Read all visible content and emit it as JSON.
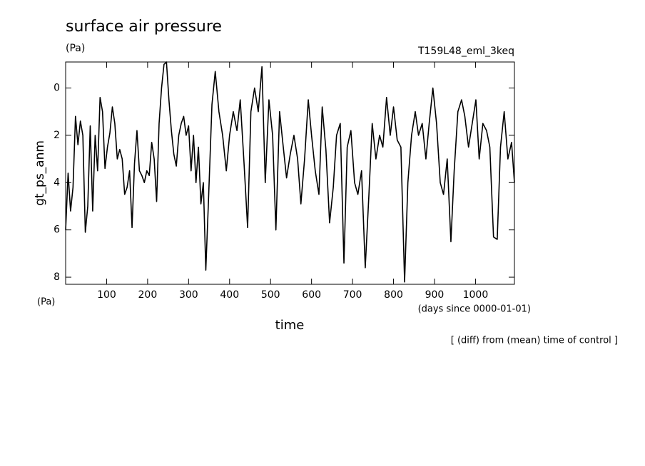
{
  "chart_data": {
    "type": "line",
    "title": "surface air pressure",
    "units": "(Pa)",
    "run_label": "T159L48_eml_3keq",
    "y_label": "gt_ps_anm",
    "y_units": "(Pa)",
    "x_label": "time",
    "x_units": "(days since 0000-01-01)",
    "note": "[ (diff) from (mean) time of control ]",
    "xlim": [
      0,
      1095
    ],
    "xticks": [
      100,
      200,
      300,
      400,
      500,
      600,
      700,
      800,
      900,
      1000
    ],
    "ylim": [
      8.3,
      -1.1
    ],
    "yticks": [
      0,
      2,
      4,
      6,
      8
    ],
    "x": [
      0,
      6,
      12,
      18,
      24,
      30,
      36,
      42,
      48,
      54,
      60,
      66,
      72,
      78,
      84,
      90,
      96,
      102,
      108,
      114,
      120,
      126,
      132,
      138,
      144,
      150,
      156,
      162,
      168,
      174,
      180,
      186,
      192,
      198,
      204,
      210,
      216,
      222,
      228,
      234,
      240,
      246,
      252,
      258,
      264,
      270,
      276,
      282,
      288,
      294,
      300,
      306,
      312,
      318,
      324,
      330,
      336,
      342,
      348,
      357,
      365,
      374,
      383,
      392,
      400,
      409,
      418,
      426,
      435,
      444,
      452,
      461,
      470,
      479,
      487,
      496,
      505,
      513,
      522,
      531,
      539,
      548,
      557,
      566,
      574,
      583,
      592,
      600,
      609,
      618,
      626,
      635,
      644,
      653,
      661,
      670,
      679,
      687,
      696,
      705,
      713,
      722,
      731,
      740,
      748,
      757,
      766,
      774,
      783,
      792,
      800,
      809,
      818,
      827,
      835,
      844,
      853,
      861,
      870,
      879,
      887,
      896,
      905,
      914,
      922,
      931,
      940,
      948,
      957,
      966,
      974,
      983,
      992,
      1001,
      1009,
      1018,
      1027,
      1035,
      1044,
      1053,
      1061,
      1070,
      1079,
      1088,
      1095
    ],
    "series": [
      {
        "color": "#000000",
        "values": [
          6.0,
          3.6,
          5.2,
          4.2,
          1.2,
          2.4,
          1.4,
          2.0,
          6.1,
          5.0,
          1.6,
          5.2,
          2.0,
          3.5,
          0.4,
          1.0,
          3.4,
          2.5,
          1.9,
          0.8,
          1.5,
          3.0,
          2.6,
          3.0,
          4.5,
          4.2,
          3.5,
          5.9,
          3.2,
          1.8,
          3.5,
          3.7,
          4.0,
          3.5,
          3.7,
          2.3,
          3.0,
          4.8,
          1.5,
          0.0,
          -1.0,
          -1.1,
          0.5,
          1.8,
          2.8,
          3.3,
          2.0,
          1.5,
          1.2,
          2.0,
          1.6,
          3.5,
          2.0,
          4.0,
          2.5,
          4.9,
          4.0,
          7.7,
          5.0,
          0.7,
          -0.7,
          1.0,
          2.0,
          3.5,
          2.0,
          1.0,
          1.8,
          0.5,
          3.1,
          5.9,
          1.0,
          0.0,
          1.0,
          -0.9,
          4.0,
          0.5,
          2.0,
          6.0,
          1.0,
          2.5,
          3.8,
          2.8,
          2.0,
          3.0,
          4.9,
          3.0,
          0.5,
          2.0,
          3.5,
          4.5,
          0.8,
          2.6,
          5.7,
          4.2,
          2.0,
          1.5,
          7.4,
          2.5,
          1.8,
          4.0,
          4.5,
          3.5,
          7.6,
          4.5,
          1.5,
          3.0,
          2.0,
          2.5,
          0.4,
          2.0,
          0.8,
          2.2,
          2.5,
          8.2,
          4.0,
          2.0,
          1.0,
          2.0,
          1.5,
          3.0,
          1.5,
          0.0,
          1.5,
          4.0,
          4.5,
          3.0,
          6.5,
          3.5,
          1.0,
          0.5,
          1.2,
          2.5,
          1.5,
          0.5,
          3.0,
          1.5,
          1.8,
          2.5,
          6.3,
          6.4,
          2.5,
          1.0,
          3.0,
          2.3,
          4.0
        ]
      }
    ]
  }
}
